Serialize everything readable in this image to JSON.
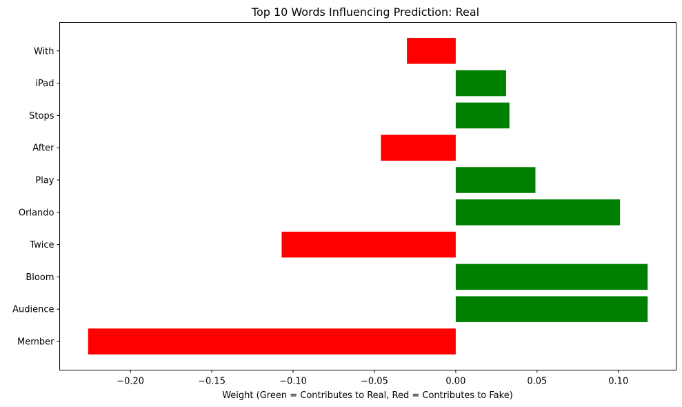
{
  "chart_data": {
    "type": "bar",
    "orientation": "horizontal",
    "title": "Top 10 Words Influencing Prediction: Real",
    "xlabel": "Weight (Green = Contributes to Real, Red = Contributes to Fake)",
    "ylabel": "",
    "categories": [
      "Member",
      "Audience",
      "Bloom",
      "Twice",
      "Orlando",
      "Play",
      "After",
      "Stops",
      "iPad",
      "With"
    ],
    "values": [
      -0.226,
      0.118,
      0.118,
      -0.107,
      0.101,
      0.049,
      -0.046,
      0.033,
      0.031,
      -0.03
    ],
    "colors": [
      "#ff0000",
      "#008000",
      "#008000",
      "#ff0000",
      "#008000",
      "#008000",
      "#ff0000",
      "#008000",
      "#008000",
      "#ff0000"
    ],
    "positive_color": "#008000",
    "negative_color": "#ff0000",
    "xlim": [
      -0.2435,
      0.1355
    ],
    "xticks": [
      -0.2,
      -0.15,
      -0.1,
      -0.05,
      0.0,
      0.05,
      0.1
    ],
    "xtick_labels": [
      "−0.20",
      "−0.15",
      "−0.10",
      "−0.05",
      "0.00",
      "0.05",
      "0.10"
    ],
    "grid": false,
    "legend": "none"
  }
}
